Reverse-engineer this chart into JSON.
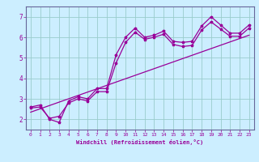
{
  "xlabel": "Windchill (Refroidissement éolien,°C)",
  "background_color": "#cceeff",
  "line_color": "#990099",
  "grid_color": "#99cccc",
  "text_color": "#990099",
  "spine_color": "#666699",
  "xlim": [
    -0.5,
    23.5
  ],
  "ylim": [
    1.5,
    7.5
  ],
  "xticks": [
    0,
    1,
    2,
    3,
    4,
    5,
    6,
    7,
    8,
    9,
    10,
    11,
    12,
    13,
    14,
    15,
    16,
    17,
    18,
    19,
    20,
    21,
    22,
    23
  ],
  "yticks": [
    2,
    3,
    4,
    5,
    6,
    7
  ],
  "series1_x": [
    0,
    1,
    2,
    3,
    4,
    5,
    6,
    7,
    8,
    9,
    10,
    11,
    12,
    13,
    14,
    15,
    16,
    17,
    18,
    19,
    20,
    21,
    22,
    23
  ],
  "series1_y": [
    2.6,
    2.7,
    2.0,
    1.85,
    2.9,
    3.1,
    3.0,
    3.5,
    3.5,
    5.15,
    6.0,
    6.45,
    6.0,
    6.1,
    6.3,
    5.8,
    5.75,
    5.8,
    6.55,
    7.0,
    6.6,
    6.2,
    6.2,
    6.6
  ],
  "series2_x": [
    0,
    1,
    2,
    3,
    4,
    5,
    6,
    7,
    8,
    9,
    10,
    11,
    12,
    13,
    14,
    15,
    16,
    17,
    18,
    19,
    20,
    21,
    22,
    23
  ],
  "series2_y": [
    2.55,
    2.6,
    2.05,
    2.15,
    2.8,
    3.0,
    2.9,
    3.35,
    3.35,
    4.75,
    5.75,
    6.25,
    5.9,
    6.0,
    6.15,
    5.65,
    5.55,
    5.6,
    6.35,
    6.75,
    6.4,
    6.05,
    6.05,
    6.45
  ],
  "series3_x": [
    0,
    23
  ],
  "series3_y": [
    2.35,
    6.1
  ]
}
